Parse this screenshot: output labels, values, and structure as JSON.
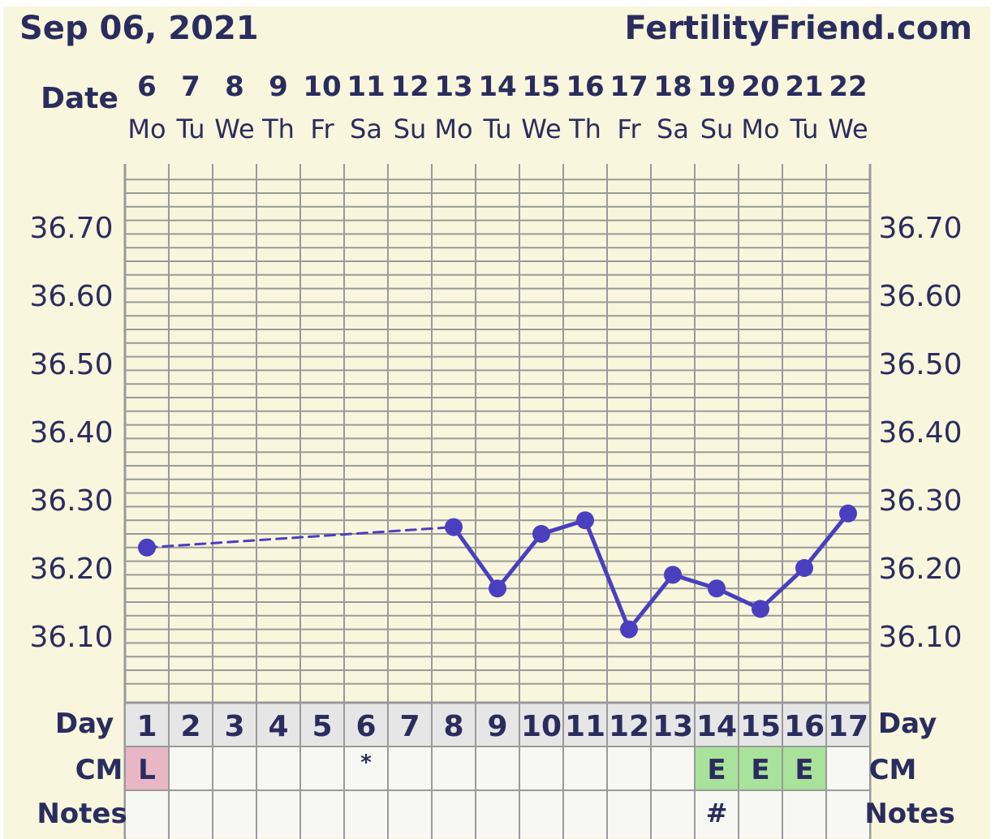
{
  "header": {
    "date": "Sep 06, 2021",
    "site": "FertilityFriend.com"
  },
  "labels": {
    "date": "Date",
    "day": "Day",
    "cm": "CM",
    "notes": "Notes"
  },
  "colors": {
    "background": "#f8f6dc",
    "text": "#2b2c5e",
    "line": "#4a3fbf",
    "grid": "#9a9a9a",
    "cm_L": "#e9b6c6",
    "cm_E": "#a9e29a",
    "day_row": "#e6e6e6"
  },
  "chart_data": {
    "type": "line",
    "title": "",
    "y_tick_labels": [
      "36.10",
      "36.20",
      "36.30",
      "36.40",
      "36.50",
      "36.60",
      "36.70"
    ],
    "ylim": [
      36.02,
      36.8
    ],
    "dates": [
      "6",
      "7",
      "8",
      "9",
      "10",
      "11",
      "12",
      "13",
      "14",
      "15",
      "16",
      "17",
      "18",
      "19",
      "20",
      "21",
      "22"
    ],
    "weekdays": [
      "Mo",
      "Tu",
      "We",
      "Th",
      "Fr",
      "Sa",
      "Su",
      "Mo",
      "Tu",
      "We",
      "Th",
      "Fr",
      "Sa",
      "Su",
      "Mo",
      "Tu",
      "We"
    ],
    "cycle_days": [
      "1",
      "2",
      "3",
      "4",
      "5",
      "6",
      "7",
      "8",
      "9",
      "10",
      "11",
      "12",
      "13",
      "14",
      "15",
      "16",
      "17"
    ],
    "temperatures": [
      {
        "day": 1,
        "temp": 36.23
      },
      {
        "day": 8,
        "temp": 36.26
      },
      {
        "day": 9,
        "temp": 36.17
      },
      {
        "day": 10,
        "temp": 36.25
      },
      {
        "day": 11,
        "temp": 36.27
      },
      {
        "day": 12,
        "temp": 36.11
      },
      {
        "day": 13,
        "temp": 36.19
      },
      {
        "day": 14,
        "temp": 36.17
      },
      {
        "day": 15,
        "temp": 36.14
      },
      {
        "day": 16,
        "temp": 36.2
      },
      {
        "day": 17,
        "temp": 36.28
      }
    ],
    "dashed_segments": [
      [
        1,
        8
      ]
    ],
    "cm": [
      "L",
      "",
      "",
      "",
      "",
      "*",
      "",
      "",
      "",
      "",
      "",
      "",
      "",
      "E",
      "E",
      "E",
      ""
    ],
    "notes": [
      "",
      "",
      "",
      "",
      "",
      "",
      "",
      "",
      "",
      "",
      "",
      "",
      "",
      "#",
      "",
      "",
      ""
    ],
    "grid": true
  }
}
